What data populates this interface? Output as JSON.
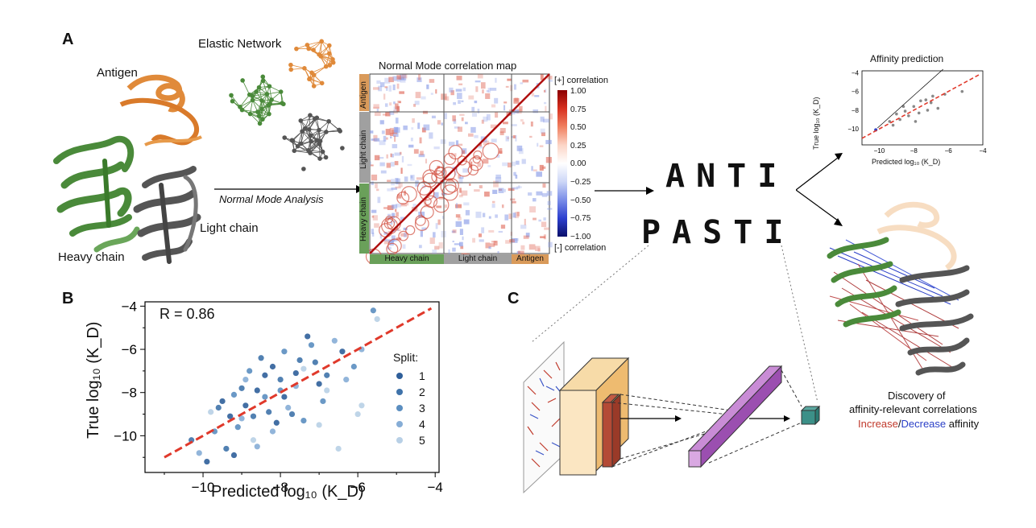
{
  "panel_a": {
    "letter": "A",
    "antigen_label": "Antigen",
    "elastic_network_label": "Elastic Network",
    "heavy_chain_label": "Heavy chain",
    "light_chain_label": "Light chain",
    "nma_label": "Normal Mode Analysis",
    "map_title": "Normal Mode correlation map",
    "colorbar_top": "[+] correlation",
    "colorbar_bottom": "[-] correlation",
    "colorbar_ticks": [
      "1.00",
      "0.75",
      "0.50",
      "0.25",
      "0.00",
      "−0.25",
      "−0.50",
      "−0.75",
      "−1.00"
    ],
    "row_labels": [
      "Antigen",
      "Light chain",
      "Heavy chain"
    ],
    "col_labels": [
      "Heavy chain",
      "Light chain",
      "Antigen"
    ],
    "logo_line1": "ANTI",
    "logo_line2": "PASTI",
    "affinity_title": "Affinity prediction",
    "mini_ylabel": "True log₁₀ (K_D)",
    "mini_xlabel": "Predicted log₁₀ (K_D)",
    "mini_yticks": [
      "−4",
      "−6",
      "−8",
      "−10"
    ],
    "mini_xticks": [
      "−10",
      "−8",
      "−6",
      "−4"
    ],
    "discovery_line1": "Discovery of",
    "discovery_line2": "affinity-relevant correlations",
    "increase_word": "Increase",
    "slash": "/",
    "decrease_word": "Decrease",
    "affinity_word": "affinity",
    "colors": {
      "increase": "#c0392b",
      "decrease": "#2a3fc7",
      "heavy": "#5a9a58",
      "light": "#9a9a9a",
      "antigen": "#d99a5a"
    }
  },
  "panel_b": {
    "letter": "B",
    "r_text": "R = 0.86",
    "legend_title": "Split:",
    "legend_items": [
      "1",
      "2",
      "3",
      "4",
      "5"
    ]
  },
  "panel_c": {
    "letter": "C"
  },
  "chart_data": {
    "type": "scatter",
    "title": "",
    "xlabel": "Predicted log₁₀ (K_D)",
    "ylabel": "True log₁₀ (K_D)",
    "xlim": [
      -11.5,
      -3.9
    ],
    "ylim": [
      -11.7,
      -3.8
    ],
    "xticks": [
      "−10",
      "−8",
      "−6",
      "−4"
    ],
    "yticks": [
      "−4",
      "−6",
      "−8",
      "−10"
    ],
    "xtick_values": [
      -10,
      -8,
      -6,
      -4
    ],
    "ytick_values": [
      -4,
      -6,
      -8,
      -10
    ],
    "annotation": "R = 0.86",
    "fit_line": {
      "x": [
        -11,
        -4.1
      ],
      "y": [
        -11,
        -4.1
      ],
      "color": "#e0392b",
      "style": "dashed"
    },
    "series": [
      {
        "name": "1",
        "color": "#2f5f9a",
        "points": [
          [
            -9.2,
            -10.9
          ],
          [
            -8.2,
            -6.8
          ],
          [
            -7.6,
            -7.1
          ],
          [
            -8.9,
            -8.6
          ],
          [
            -9.5,
            -8.4
          ],
          [
            -7.3,
            -5.4
          ],
          [
            -8.6,
            -7.9
          ],
          [
            -7.9,
            -8.2
          ],
          [
            -9.3,
            -9.1
          ],
          [
            -6.4,
            -6.1
          ],
          [
            -8.1,
            -9.4
          ],
          [
            -7.0,
            -7.6
          ],
          [
            -9.9,
            -11.2
          ],
          [
            -8.4,
            -7.2
          ]
        ]
      },
      {
        "name": "2",
        "color": "#3f73aa",
        "points": [
          [
            -9.6,
            -8.7
          ],
          [
            -8.0,
            -7.4
          ],
          [
            -7.5,
            -6.5
          ],
          [
            -8.7,
            -9.1
          ],
          [
            -10.3,
            -10.2
          ],
          [
            -9.0,
            -7.8
          ],
          [
            -7.1,
            -6.6
          ],
          [
            -8.3,
            -8.9
          ],
          [
            -6.8,
            -7.2
          ],
          [
            -9.4,
            -10.6
          ],
          [
            -7.7,
            -9.0
          ],
          [
            -8.5,
            -6.4
          ]
        ]
      },
      {
        "name": "3",
        "color": "#5b8ec0",
        "points": [
          [
            -9.1,
            -9.6
          ],
          [
            -7.2,
            -5.8
          ],
          [
            -8.8,
            -7.0
          ],
          [
            -6.1,
            -6.8
          ],
          [
            -7.9,
            -6.1
          ],
          [
            -8.4,
            -8.2
          ],
          [
            -9.7,
            -9.8
          ],
          [
            -6.9,
            -8.4
          ],
          [
            -5.6,
            -4.2
          ],
          [
            -8.0,
            -7.9
          ],
          [
            -9.2,
            -8.1
          ],
          [
            -7.4,
            -9.3
          ]
        ]
      },
      {
        "name": "4",
        "color": "#86add6",
        "points": [
          [
            -8.6,
            -10.5
          ],
          [
            -6.3,
            -7.4
          ],
          [
            -7.8,
            -8.7
          ],
          [
            -9.0,
            -9.2
          ],
          [
            -6.6,
            -5.6
          ],
          [
            -10.1,
            -10.8
          ],
          [
            -7.6,
            -7.7
          ],
          [
            -8.2,
            -9.8
          ],
          [
            -5.9,
            -6.0
          ],
          [
            -8.9,
            -7.4
          ]
        ]
      },
      {
        "name": "5",
        "color": "#b8d0e6",
        "points": [
          [
            -7.0,
            -9.5
          ],
          [
            -6.0,
            -9.0
          ],
          [
            -5.5,
            -4.6
          ],
          [
            -6.8,
            -7.9
          ],
          [
            -9.8,
            -8.9
          ],
          [
            -5.9,
            -8.6
          ],
          [
            -7.4,
            -6.9
          ],
          [
            -8.7,
            -10.2
          ],
          [
            -6.5,
            -10.6
          ]
        ]
      }
    ]
  }
}
